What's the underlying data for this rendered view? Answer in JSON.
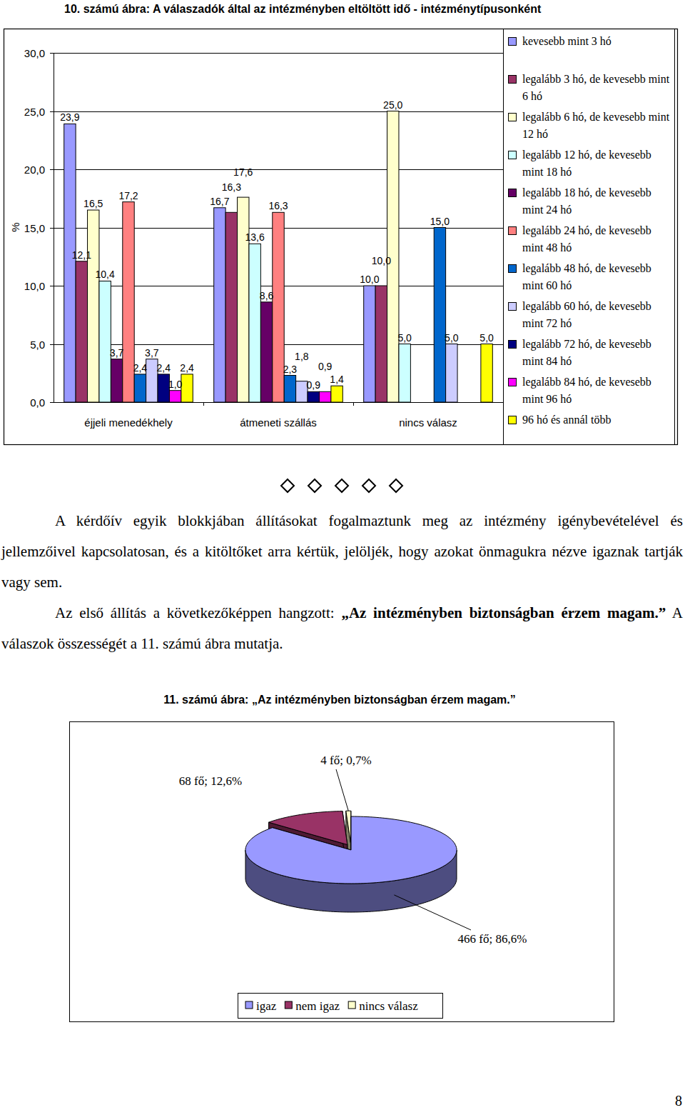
{
  "chart_data": [
    {
      "type": "bar",
      "title": "10. számú ábra: A válaszadók által az intézményben eltöltött idő - intézménytípusonként",
      "y_label": "%",
      "categories": [
        "éjjeli menedékhely",
        "átmeneti szállás",
        "nincs válasz"
      ],
      "series": [
        {
          "name": "kevesebb mint 3 hó",
          "color": "#9999ff",
          "values": [
            23.9,
            16.7,
            10.0
          ],
          "value_labels": [
            "23,9",
            "16,7",
            "10,0"
          ]
        },
        {
          "name": "legalább 3 hó, de kevesebb mint 6 hó",
          "color": "#993366",
          "values": [
            12.1,
            16.3,
            10.0
          ],
          "value_labels": [
            "12,1",
            "16,3",
            "10,0"
          ]
        },
        {
          "name": "legalább 6 hó, de kevesebb mint 12 hó",
          "color": "#ffffcc",
          "values": [
            16.5,
            17.6,
            25.0
          ],
          "value_labels": [
            "16,5",
            "17,6",
            "25,0"
          ]
        },
        {
          "name": "legalább 12 hó, de kevesebb mint 18 hó",
          "color": "#ccffff",
          "values": [
            10.4,
            13.6,
            5.0
          ],
          "value_labels": [
            "10,4",
            "13,6",
            "5,0"
          ]
        },
        {
          "name": "legalább 18 hó, de kevesebb mint 24 hó",
          "color": "#660066",
          "values": [
            3.7,
            8.6,
            0
          ],
          "value_labels": [
            "3,7",
            "8,6",
            null
          ]
        },
        {
          "name": "legalább 24 hó, de kevesebb mint 48 hó",
          "color": "#ff8080",
          "values": [
            17.2,
            16.3,
            0
          ],
          "value_labels": [
            "17,2",
            "16,3",
            null
          ]
        },
        {
          "name": "legalább 48 hó, de kevesebb mint 60 hó",
          "color": "#0066cc",
          "values": [
            2.4,
            2.3,
            15.0
          ],
          "value_labels": [
            "2,4",
            "2,3",
            "15,0"
          ]
        },
        {
          "name": "legalább 60 hó, de kevesebb mint 72 hó",
          "color": "#ccccff",
          "values": [
            3.7,
            1.8,
            5.0
          ],
          "value_labels": [
            "3,7",
            "1,8",
            "5,0"
          ]
        },
        {
          "name": "legalább 72 hó, de kevesebb mint 84 hó",
          "color": "#000080",
          "values": [
            2.4,
            0.9,
            0
          ],
          "value_labels": [
            "2,4",
            "0,9",
            null
          ]
        },
        {
          "name": "legalább 84 hó, de kevesebb mint 96 hó",
          "color": "#ff00ff",
          "values": [
            1.0,
            0.9,
            0
          ],
          "value_labels": [
            "1,0",
            "0,9",
            null
          ]
        },
        {
          "name": "96 hó és annál több",
          "color": "#ffff00",
          "values": [
            2.4,
            1.4,
            5.0
          ],
          "value_labels": [
            "2,4",
            "1,4",
            "5,0"
          ]
        }
      ],
      "ylim": [
        0,
        30
      ],
      "yticks": [
        {
          "value": 0,
          "label": "0,0"
        },
        {
          "value": 5,
          "label": "5,0"
        },
        {
          "value": 10,
          "label": "10,0"
        },
        {
          "value": 15,
          "label": "15,0"
        },
        {
          "value": 20,
          "label": "20,0"
        },
        {
          "value": 25,
          "label": "25,0"
        },
        {
          "value": 30,
          "label": "30,0"
        }
      ],
      "grid": true,
      "data_labels": true,
      "legend": "right"
    },
    {
      "type": "pie",
      "title": "11. számú ábra: „Az intézményben biztonságban érzem magam.”",
      "categories": [
        "igaz",
        "nem igaz",
        "nincs válasz"
      ],
      "values": [
        466,
        68,
        4
      ],
      "value_labels": [
        "466 fő; 86,6%",
        "68 fő; 12,6%",
        "4 fő; 0,7%"
      ],
      "colors": [
        "#9999ff",
        "#993366",
        "#ffffcc"
      ],
      "data_labels": true,
      "legend": "bottom"
    }
  ],
  "document": {
    "paragraphs": [
      {
        "runs": [
          {
            "text": "A kérdőív egyik blokkjában állításokat fogalmaztunk meg az intézmény igénybevételével és jellemzőivel kapcsolatosan, és a kitöltőket arra kértük, jelöljék, hogy azokat önmagukra nézve igaznak tartják vagy sem.",
            "bold": false
          }
        ]
      },
      {
        "runs": [
          {
            "text": "Az első állítás a következőképpen hangzott: ",
            "bold": false
          },
          {
            "text": "„Az intézményben biztonságban érzem magam.”",
            "bold": true
          },
          {
            "text": " A válaszok összességét a 11. számú ábra mutatja.",
            "bold": false
          }
        ]
      }
    ],
    "page_number": "8"
  }
}
